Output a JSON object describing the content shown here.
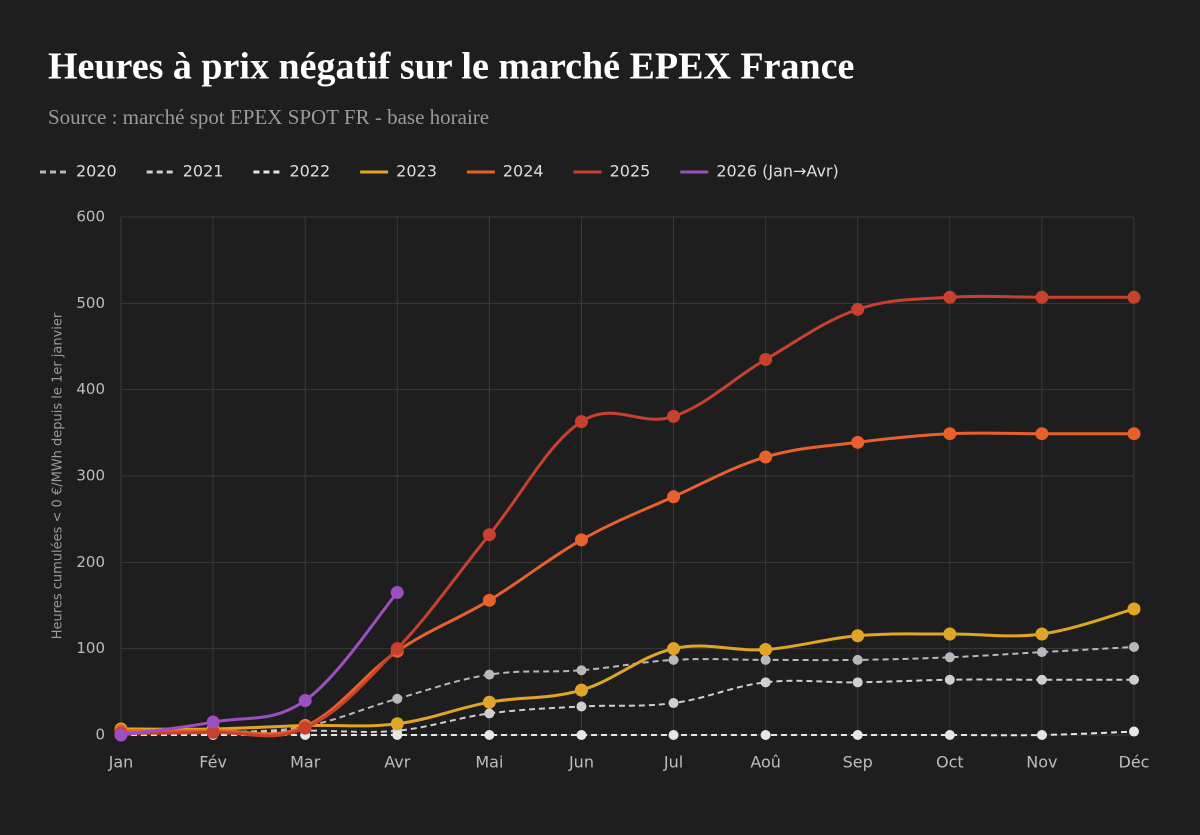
{
  "chart_data": {
    "type": "line",
    "title": "Heures à prix négatif sur le marché EPEX France",
    "subtitle": "Source : marché spot EPEX SPOT FR - base horaire",
    "y_label": "Heures cumulées < 0 €/MWh depuis le 1er janvier",
    "categories": [
      "Jan",
      "Fév",
      "Mar",
      "Avr",
      "Mai",
      "Jun",
      "Jul",
      "Aoû",
      "Sep",
      "Oct",
      "Nov",
      "Déc"
    ],
    "ylim": [
      0,
      600
    ],
    "yticks": [
      0,
      100,
      200,
      300,
      400,
      500,
      600
    ],
    "grid": true,
    "legend": "top-left",
    "series": [
      {
        "name": "2020",
        "color": "#b8b8b8",
        "dashed": true,
        "values": [
          0,
          3,
          10,
          42,
          70,
          75,
          87,
          87,
          87,
          90,
          96,
          102
        ]
      },
      {
        "name": "2021",
        "color": "#cfcfcf",
        "dashed": true,
        "values": [
          0,
          2,
          5,
          5,
          25,
          33,
          37,
          61,
          61,
          64,
          64,
          64
        ]
      },
      {
        "name": "2022",
        "color": "#e6e6e6",
        "dashed": true,
        "values": [
          0,
          0,
          0,
          0,
          0,
          0,
          0,
          0,
          0,
          0,
          0,
          4
        ]
      },
      {
        "name": "2023",
        "color": "#e0a526",
        "dashed": false,
        "values": [
          7,
          7,
          11,
          13,
          38,
          52,
          100,
          99,
          115,
          117,
          117,
          146
        ]
      },
      {
        "name": "2024",
        "color": "#e8602c",
        "dashed": false,
        "values": [
          5,
          5,
          10,
          97,
          156,
          226,
          276,
          322,
          339,
          349,
          349,
          349
        ]
      },
      {
        "name": "2025",
        "color": "#c8402e",
        "dashed": false,
        "values": [
          2,
          3,
          8,
          100,
          232,
          363,
          369,
          435,
          493,
          507,
          507,
          507
        ]
      },
      {
        "name": "2026 (Jan→Avr)",
        "color": "#9b4fc0",
        "dashed": false,
        "values": [
          0,
          15,
          40,
          165,
          null,
          null,
          null,
          null,
          null,
          null,
          null,
          null
        ]
      }
    ]
  }
}
